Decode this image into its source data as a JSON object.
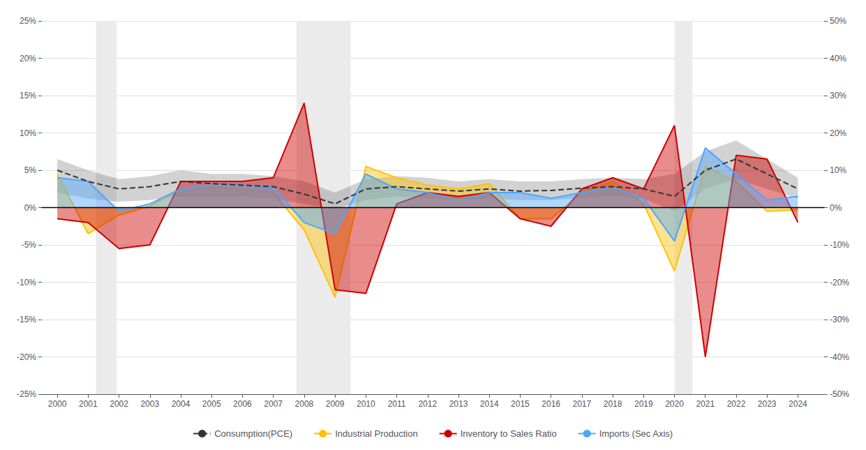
{
  "chart_data": {
    "type": "line",
    "x": [
      2000,
      2001,
      2002,
      2003,
      2004,
      2005,
      2006,
      2007,
      2008,
      2009,
      2010,
      2011,
      2012,
      2013,
      2014,
      2015,
      2016,
      2017,
      2018,
      2019,
      2020,
      2021,
      2022,
      2023,
      2024
    ],
    "xlim": [
      1999.5,
      2024.85
    ],
    "xticks": [
      2000,
      2001,
      2002,
      2003,
      2004,
      2005,
      2006,
      2007,
      2008,
      2009,
      2010,
      2011,
      2012,
      2013,
      2014,
      2015,
      2016,
      2017,
      2018,
      2019,
      2020,
      2021,
      2022,
      2023,
      2024
    ],
    "ylim": [
      -25,
      25
    ],
    "yticks": [
      {
        "value": -25,
        "label": "-25%"
      },
      {
        "value": -20,
        "label": "-20%"
      },
      {
        "value": -15,
        "label": "-15%"
      },
      {
        "value": -10,
        "label": "-10%"
      },
      {
        "value": -5,
        "label": "-5%"
      },
      {
        "value": 0,
        "label": "0%"
      },
      {
        "value": 5,
        "label": "5%"
      },
      {
        "value": 10,
        "label": "10%"
      },
      {
        "value": 15,
        "label": "15%"
      },
      {
        "value": 20,
        "label": "20%"
      },
      {
        "value": 25,
        "label": "25%"
      }
    ],
    "y2lim": [
      -50,
      50
    ],
    "y2ticks": [
      {
        "value": -50,
        "label": "-50%"
      },
      {
        "value": -40,
        "label": "-40%"
      },
      {
        "value": -30,
        "label": "-30%"
      },
      {
        "value": -20,
        "label": "-20%"
      },
      {
        "value": -10,
        "label": "-10%"
      },
      {
        "value": 0,
        "label": "0%"
      },
      {
        "value": 10,
        "label": "10%"
      },
      {
        "value": 20,
        "label": "20%"
      },
      {
        "value": 30,
        "label": "30%"
      },
      {
        "value": 40,
        "label": "40%"
      },
      {
        "value": 50,
        "label": "50%"
      }
    ],
    "grid": true,
    "legend": "bottom",
    "recessions": {
      "periods": [
        [
          2001.25,
          2001.92
        ],
        [
          2007.75,
          2009.5
        ],
        [
          2020.0,
          2020.58
        ]
      ],
      "color": "#ebebeb"
    },
    "series": [
      {
        "name": "Consumption(PCE)",
        "type": "line",
        "line_style": "dashed",
        "color": "#333333",
        "values": [
          5.0,
          3.5,
          2.5,
          2.8,
          3.5,
          3.2,
          3.0,
          2.8,
          1.8,
          0.5,
          2.5,
          2.8,
          2.5,
          2.2,
          2.5,
          2.2,
          2.3,
          2.6,
          2.8,
          2.5,
          1.5,
          5.0,
          6.5,
          4.5,
          2.5
        ],
        "lower": [
          2.0,
          1.2,
          0.8,
          1.0,
          1.5,
          1.5,
          1.5,
          1.2,
          0.5,
          -0.2,
          1.0,
          1.5,
          1.2,
          1.0,
          1.2,
          1.0,
          1.0,
          1.3,
          1.5,
          1.2,
          -0.5,
          2.5,
          3.8,
          2.5,
          1.2
        ],
        "upper": [
          6.5,
          5.0,
          3.8,
          4.2,
          5.0,
          4.5,
          4.5,
          4.2,
          3.5,
          2.0,
          3.8,
          4.2,
          4.0,
          3.5,
          3.8,
          3.5,
          3.5,
          3.8,
          4.0,
          3.8,
          4.5,
          7.5,
          9.0,
          6.5,
          4.0
        ]
      },
      {
        "name": "Industrial Production",
        "type": "area",
        "line_style": "solid",
        "color": "#FFC107",
        "values": [
          4.5,
          -3.5,
          -1.0,
          0.2,
          2.5,
          2.8,
          2.5,
          2.0,
          -3.0,
          -12.0,
          5.5,
          4.0,
          3.0,
          2.5,
          3.2,
          -1.5,
          -1.5,
          2.0,
          3.5,
          0.5,
          -8.5,
          5.5,
          3.5,
          -0.5,
          -0.3
        ]
      },
      {
        "name": "Inventory to Sales Ratio",
        "type": "area",
        "line_style": "solid",
        "color": "#CC0000",
        "values": [
          -1.5,
          -2.0,
          -5.5,
          -5.0,
          3.5,
          3.5,
          3.5,
          4.0,
          14.0,
          -11.0,
          -11.5,
          0.5,
          2.0,
          1.5,
          2.0,
          -1.5,
          -2.5,
          2.5,
          4.0,
          2.5,
          11.0,
          -20.0,
          7.0,
          6.5,
          -2.0
        ]
      },
      {
        "name": "Imports (Sec Axis)",
        "type": "area",
        "line_style": "solid",
        "color": "#4DA6FF",
        "axis": "y2",
        "values": [
          8.0,
          7.0,
          -1.0,
          1.0,
          5.0,
          6.0,
          6.0,
          5.5,
          -4.0,
          -7.0,
          9.0,
          5.0,
          4.0,
          2.0,
          4.0,
          4.0,
          2.5,
          4.0,
          5.5,
          2.5,
          -9.0,
          16.0,
          9.0,
          2.0,
          3.0
        ]
      }
    ]
  }
}
